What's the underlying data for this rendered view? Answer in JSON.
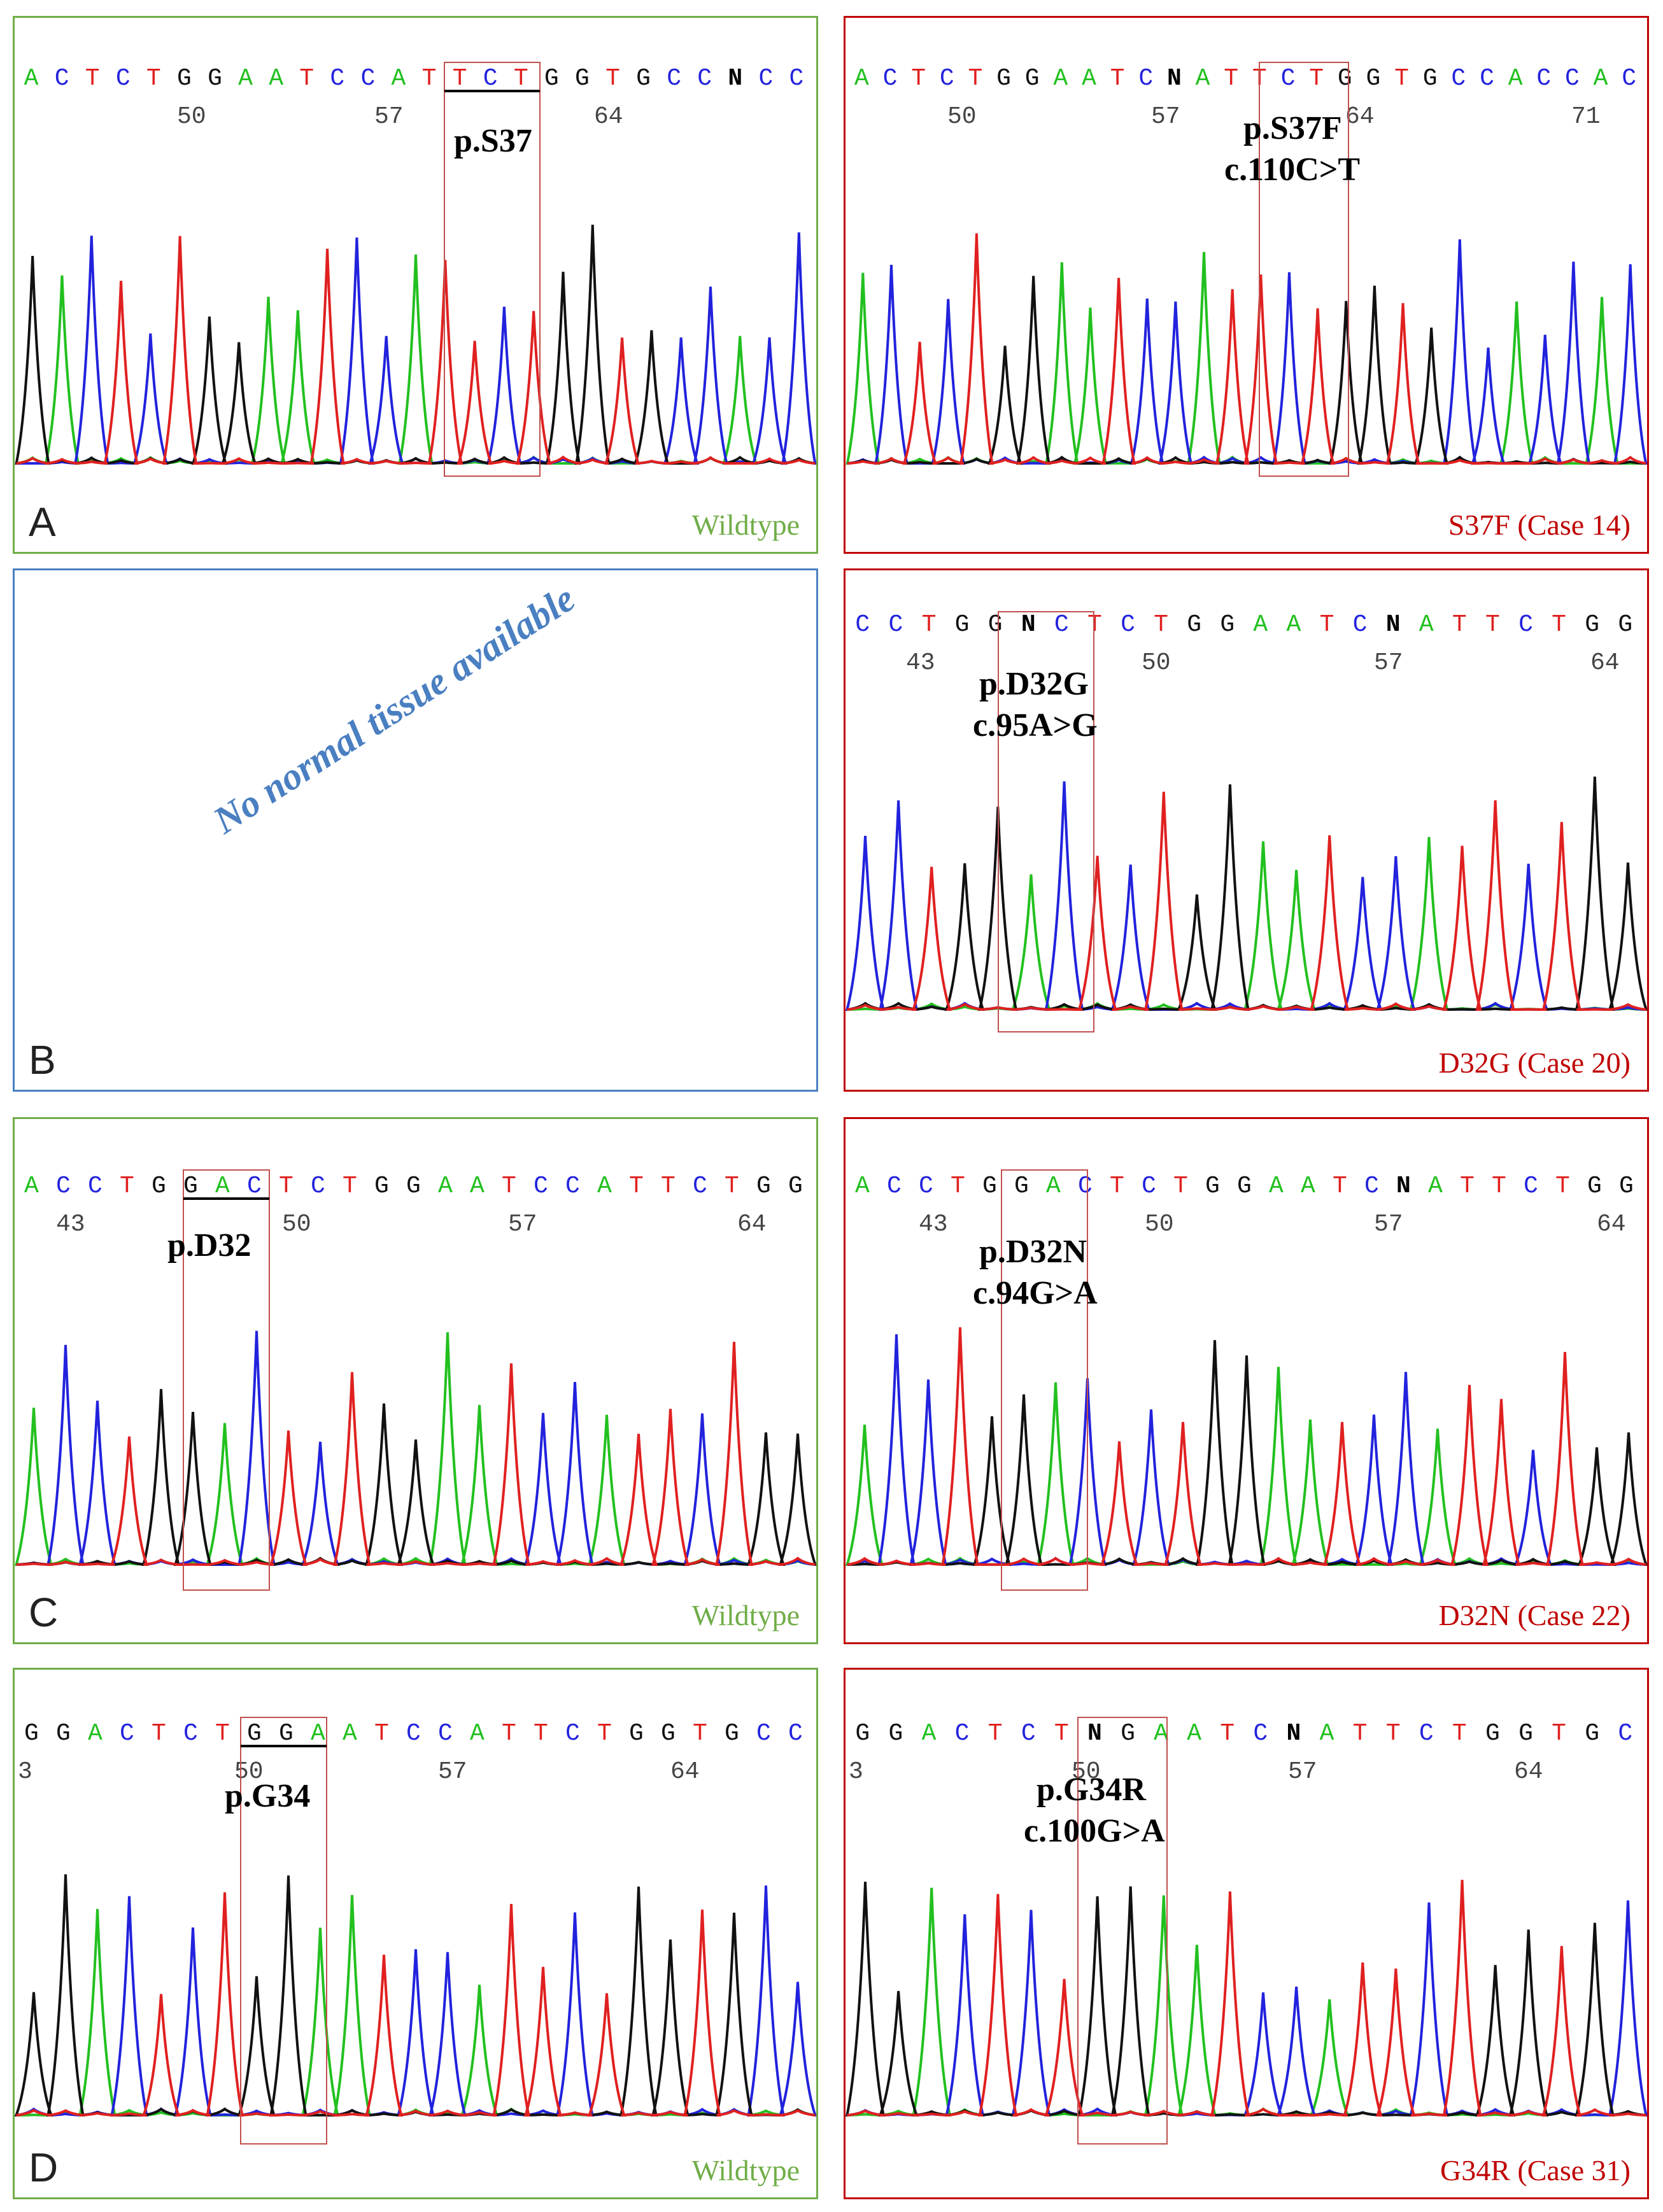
{
  "colors": {
    "A": "#22c01f",
    "C": "#2222dd",
    "G": "#111111",
    "T": "#e02020",
    "N": "#000000",
    "wildtype": "#70ad47",
    "mutant": "#c00000",
    "na": "#4a7fc1"
  },
  "panels": {
    "A_wt": {
      "letter": "A",
      "caption": "Wildtype",
      "sequence": "ACTCTGGAATCCATTCTGGTGCCNCC",
      "positions": [
        "50",
        "57",
        "64"
      ],
      "labels": [
        "p.S37"
      ],
      "trace": "GACTCTGGAATCCATTCTGGTGCCACC"
    },
    "A_mut": {
      "caption": "S37F (Case 14)",
      "sequence": "ACTCTGGAATCNATTCTGGTGCCACCAC",
      "positions": [
        "50",
        "57",
        "64",
        "71"
      ],
      "labels": [
        "p.S37F",
        "c.110C>T"
      ],
      "trace": "ACTCTGGAATCCATTCTGGTGCCACCAC"
    },
    "B_na": {
      "letter": "B",
      "note": "No normal tissue available"
    },
    "B_mut": {
      "caption": "D32G (Case 20)",
      "sequence": "CCTGGNCTCTGGAATCNATTCTGG",
      "positions": [
        "43",
        "50",
        "57",
        "64"
      ],
      "labels": [
        "p.D32G",
        "c.95A>G"
      ],
      "trace": "CCTGGACTCTGGAATCCATTCTGG"
    },
    "C_wt": {
      "letter": "C",
      "caption": "Wildtype",
      "sequence": "ACCTGGACTCTGGAATCCATTCTGG",
      "positions": [
        "43",
        "50",
        "57",
        "64"
      ],
      "labels": [
        "p.D32"
      ],
      "trace": "ACCTGGACTCTGGAATCCATTCTGG"
    },
    "C_mut": {
      "caption": "D32N (Case 22)",
      "sequence": "ACCTGGACTCTGGAATCNATTCTGG",
      "positions": [
        "43",
        "50",
        "57",
        "64"
      ],
      "labels": [
        "p.D32N",
        "c.94G>A"
      ],
      "trace": "ACCTGGACTCTGGAATCCATTCTGG"
    },
    "D_wt": {
      "letter": "D",
      "caption": "Wildtype",
      "sequence": "GGACTCTGGAATCCATTCTGGTGCC",
      "positions": [
        "3",
        "50",
        "57",
        "64"
      ],
      "labels": [
        "p.G34"
      ],
      "trace": "GGACTCTGGAATCCATTCTGGTGCC"
    },
    "D_mut": {
      "caption": "G34R (Case 31)",
      "sequence": "GGACTCTNGAATCNATTCTGGTGC",
      "positions": [
        "3",
        "50",
        "57",
        "64"
      ],
      "labels": [
        "p.G34R",
        "c.100G>A"
      ],
      "trace": "GGACTCTGGAATCCATTCTGGTGC"
    }
  }
}
